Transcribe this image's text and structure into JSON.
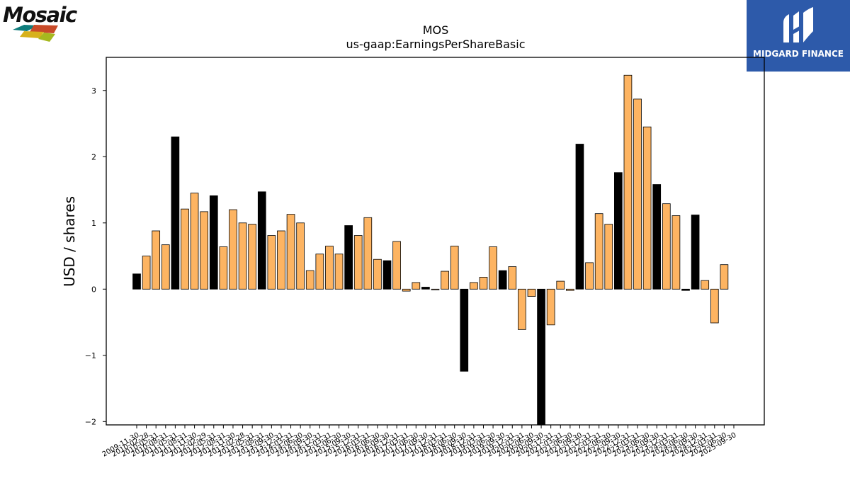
{
  "logos": {
    "left_text": "Mosaic",
    "right_text": "MIDGARD FINANCE"
  },
  "colors": {
    "annual_bar": "#000000",
    "quarterly_bar": "#fdb462",
    "bar_edge": "#000000",
    "brand_blue": "#2d5aaa"
  },
  "chart_data": {
    "type": "bar",
    "title": "MOS",
    "subtitle": "us-gaap:EarningsPerShareBasic",
    "ylabel": "USD / shares",
    "xlabel": "",
    "ylim": [
      -2.05,
      3.5
    ],
    "yticks": [
      -2,
      -1,
      0,
      1,
      2,
      3
    ],
    "ytick_labels": [
      "−2",
      "−1",
      "0",
      "1",
      "2",
      "3"
    ],
    "grid": false,
    "categories": [
      "2009-11-30",
      "2010-02-28",
      "2010-05-31",
      "2010-08-31",
      "2011-05-31",
      "2011-08-31",
      "2011-11-30",
      "2012-02-29",
      "2012-05-31",
      "2012-08-31",
      "2012-11-30",
      "2013-02-28",
      "2013-05-31",
      "2013-08-31",
      "2013-09-30",
      "2013-12-31",
      "2014-03-31",
      "2014-06-30",
      "2014-09-30",
      "2014-12-31",
      "2015-03-31",
      "2015-06-30",
      "2015-09-30",
      "2015-12-31",
      "2016-03-31",
      "2016-06-30",
      "2016-09-30",
      "2016-12-31",
      "2017-03-31",
      "2017-06-30",
      "2017-09-30",
      "2017-12-31",
      "2018-03-31",
      "2018-06-30",
      "2018-09-30",
      "2018-12-31",
      "2019-03-31",
      "2019-06-30",
      "2019-09-30",
      "2019-12-31",
      "2020-03-31",
      "2020-06-30",
      "2020-09-30",
      "2020-12-31",
      "2021-03-31",
      "2021-06-30",
      "2021-09-30",
      "2021-12-31",
      "2022-03-31",
      "2022-06-30",
      "2022-09-30",
      "2022-12-31",
      "2023-03-31",
      "2023-06-30",
      "2023-09-30",
      "2023-12-31",
      "2024-03-31",
      "2024-06-30",
      "2024-09-30",
      "2024-12-31",
      "2025-03-31",
      "2025-06-30",
      "2025-09-30"
    ],
    "tick_labels": [
      "2009-11-30",
      "2010-02-28",
      "2010-05-31",
      "2010-08-31",
      "2011-05-31",
      "2011-08-31",
      "2011-11-30",
      "2012-02-29",
      "2012-05-31",
      "2012-08-31",
      "2012-11-30",
      "2013-02-28",
      "2013-05-31",
      "2013-08-31",
      "2013-09-30",
      "2013-12-31",
      "2014-03-31",
      "2014-06-30",
      "2014-09-30",
      "2014-12-31",
      "2015-03-31",
      "2015-06-30",
      "2015-09-30",
      "2015-12-31",
      "2016-03-31",
      "2016-06-30",
      "2016-09-30",
      "2016-12-31",
      "2017-03-31",
      "2017-06-30",
      "2017-09-30",
      "2017-12-31",
      "2018-03-31",
      "2018-06-30",
      "2018-09-30",
      "2018-12-31",
      "2019-03-31",
      "2019-06-30",
      "2019-09-30",
      "2019-12-31",
      "2020-03-31",
      "2020-06-30",
      "2020-09-30",
      "2020-12-31",
      "2021-03-31",
      "2021-06-30",
      "2021-09-30",
      "2021-12-31",
      "2022-03-31",
      "2022-06-30",
      "2022-09-30",
      "2022-12-31",
      "2023-03-31",
      "2023-06-30",
      "2023-09-30",
      "2023-12-31",
      "2024-03-31",
      "2024-06-30",
      "2024-09-30",
      "2024-12-31",
      "2025-03-31",
      "2025-06-30",
      "2025-09-30"
    ],
    "values": [
      0.23,
      0.5,
      0.88,
      0.67,
      2.3,
      1.21,
      1.45,
      1.17,
      1.41,
      0.64,
      1.2,
      1.0,
      0.98,
      1.47,
      0.81,
      0.88,
      1.13,
      1.0,
      0.28,
      0.53,
      0.65,
      0.53,
      0.96,
      0.81,
      1.08,
      0.45,
      0.43,
      0.72,
      -0.03,
      0.1,
      0.03,
      -0.01,
      0.27,
      0.65,
      -1.24,
      0.1,
      0.18,
      0.64,
      0.28,
      0.34,
      -0.61,
      -0.11,
      -2.05,
      -0.54,
      0.12,
      -0.02,
      2.19,
      0.4,
      1.14,
      0.98,
      1.76,
      3.23,
      2.87,
      2.45,
      1.58,
      1.29,
      1.11,
      -0.02,
      1.12,
      0.13,
      -0.51,
      0.37,
      0.0
    ],
    "annual": [
      true,
      false,
      false,
      false,
      true,
      false,
      false,
      false,
      true,
      false,
      false,
      false,
      false,
      true,
      false,
      false,
      false,
      false,
      false,
      false,
      false,
      false,
      true,
      false,
      false,
      false,
      true,
      false,
      false,
      false,
      true,
      false,
      false,
      false,
      true,
      false,
      false,
      false,
      true,
      false,
      false,
      false,
      true,
      false,
      false,
      false,
      true,
      false,
      false,
      false,
      true,
      false,
      false,
      false,
      true,
      false,
      false,
      true,
      true,
      false,
      false,
      false,
      false
    ]
  }
}
